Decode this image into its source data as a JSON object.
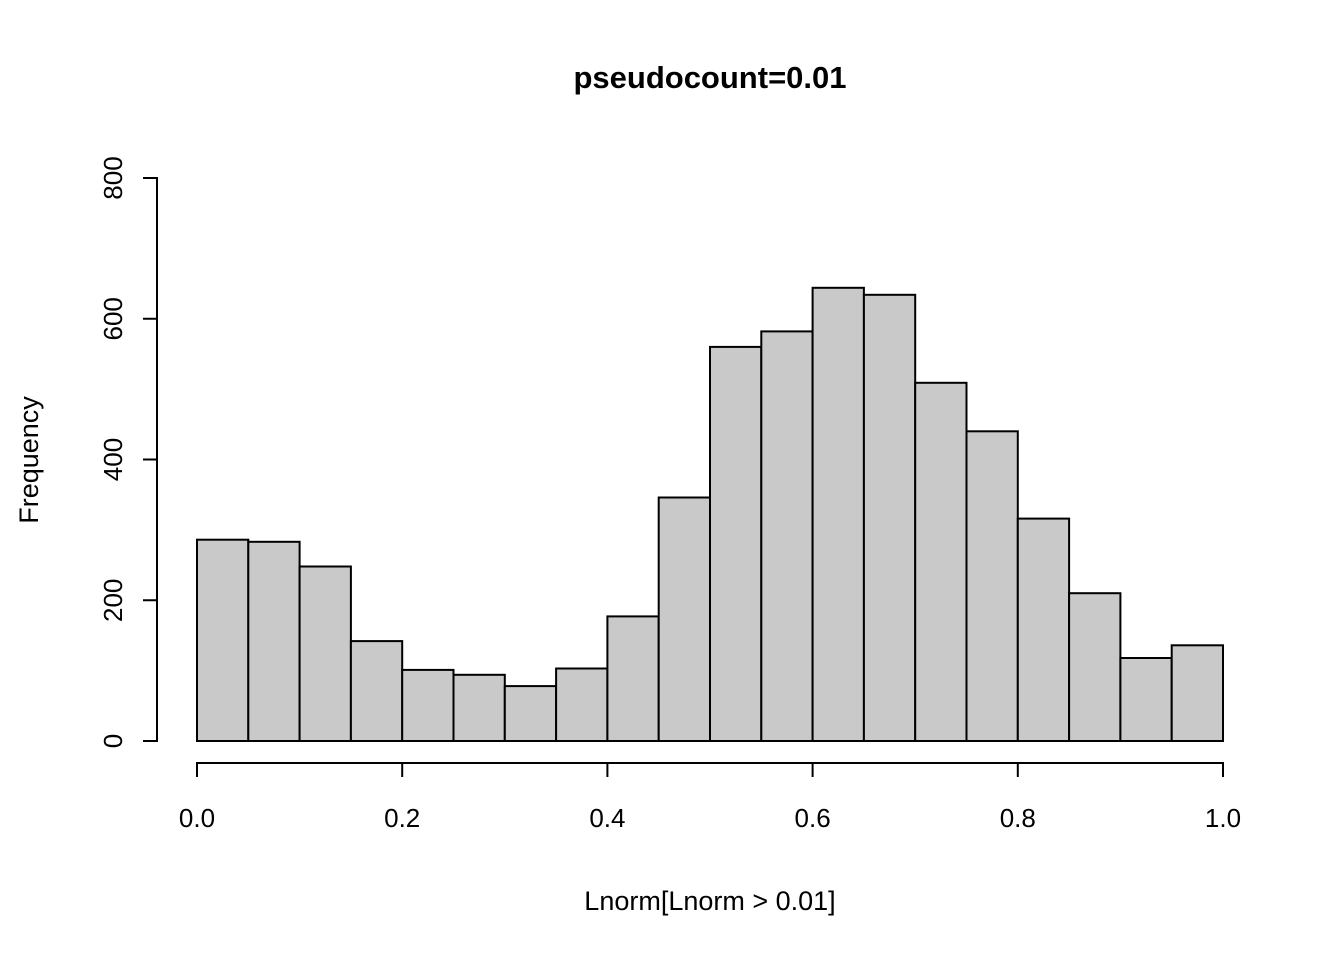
{
  "chart_data": {
    "type": "bar",
    "subtype": "histogram",
    "title": "pseudocount=0.01",
    "xlabel": "Lnorm[Lnorm > 0.01]",
    "ylabel": "Frequency",
    "bin_edges": [
      0.0,
      0.05,
      0.1,
      0.15,
      0.2,
      0.25,
      0.3,
      0.35,
      0.4,
      0.45,
      0.5,
      0.55,
      0.6,
      0.65,
      0.7,
      0.75,
      0.8,
      0.85,
      0.9,
      0.95,
      1.0
    ],
    "counts": [
      286,
      283,
      248,
      142,
      101,
      94,
      78,
      103,
      177,
      346,
      560,
      582,
      644,
      634,
      509,
      440,
      316,
      210,
      118,
      136
    ],
    "xlim": [
      0.0,
      1.0
    ],
    "ylim": [
      0,
      800
    ],
    "x_ticks": [
      0.0,
      0.2,
      0.4,
      0.6,
      0.8,
      1.0
    ],
    "x_tick_labels": [
      "0.0",
      "0.2",
      "0.4",
      "0.6",
      "0.8",
      "1.0"
    ],
    "y_ticks": [
      0,
      200,
      400,
      600,
      800
    ],
    "y_tick_labels": [
      "0",
      "200",
      "400",
      "600",
      "800"
    ],
    "grid": false,
    "legend": null,
    "colors": {
      "bar_fill": "#C9C9C9",
      "bar_stroke": "#000000",
      "axis_stroke": "#000000",
      "background": "#FFFFFF"
    }
  }
}
